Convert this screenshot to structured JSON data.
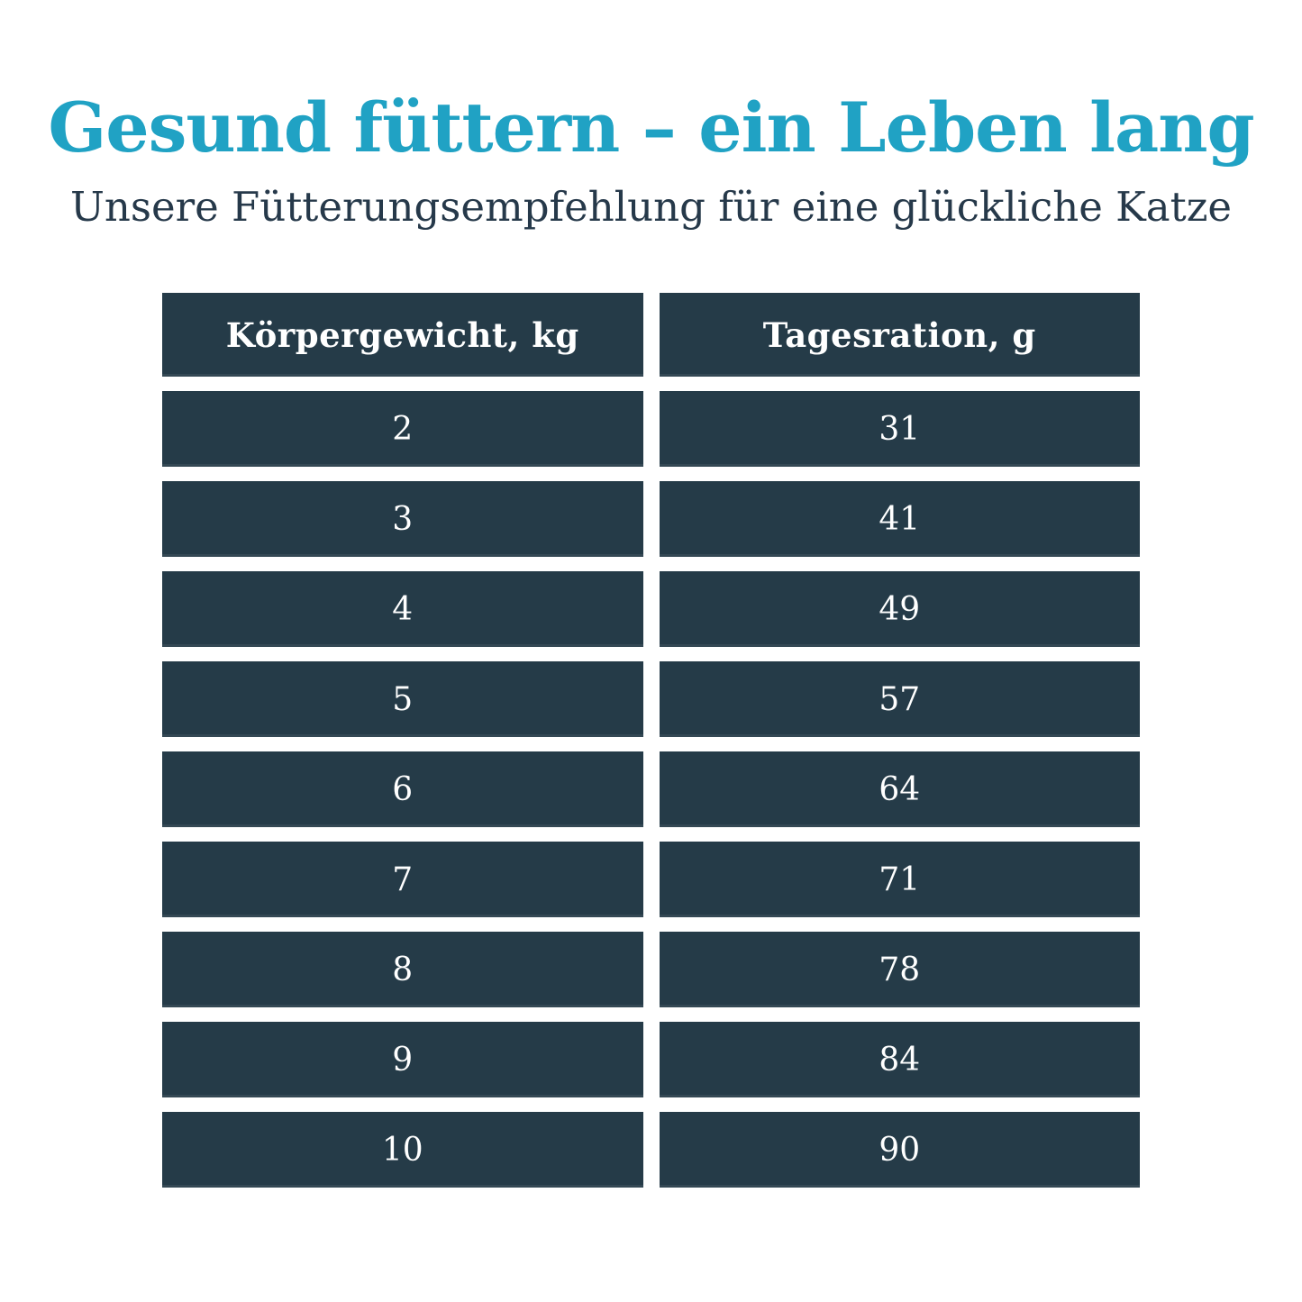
{
  "page": {
    "background": "#ffffff"
  },
  "header": {
    "title": "Gesund füttern – ein Leben lang",
    "subtitle": "Unsere Fütterungsempfehlung für eine glückliche Katze"
  },
  "colors": {
    "title_teal": "#20a2c4",
    "subtitle_navy": "#26394a",
    "cell_navy": "#253b48",
    "cell_text": "#ffffff",
    "gutter": "#ffffff"
  },
  "table": {
    "columns": [
      "Körpergewicht, kg",
      "Tagesration, g"
    ],
    "rows": [
      [
        "2",
        "31"
      ],
      [
        "3",
        "41"
      ],
      [
        "4",
        "49"
      ],
      [
        "5",
        "57"
      ],
      [
        "6",
        "64"
      ],
      [
        "7",
        "71"
      ],
      [
        "8",
        "78"
      ],
      [
        "9",
        "84"
      ],
      [
        "10",
        "90"
      ]
    ]
  },
  "chart_data": {
    "type": "table",
    "title": "Gesund füttern – ein Leben lang",
    "subtitle": "Unsere Fütterungsempfehlung für eine glückliche Katze",
    "columns": [
      "Körpergewicht, kg",
      "Tagesration, g"
    ],
    "rows": [
      [
        2,
        31
      ],
      [
        3,
        41
      ],
      [
        4,
        49
      ],
      [
        5,
        57
      ],
      [
        6,
        64
      ],
      [
        7,
        71
      ],
      [
        8,
        78
      ],
      [
        9,
        84
      ],
      [
        10,
        90
      ]
    ],
    "x_series_name": "Körpergewicht (kg)",
    "y_series_name": "Tagesration (g)",
    "x": [
      2,
      3,
      4,
      5,
      6,
      7,
      8,
      9,
      10
    ],
    "y": [
      31,
      41,
      49,
      57,
      64,
      71,
      78,
      84,
      90
    ]
  }
}
